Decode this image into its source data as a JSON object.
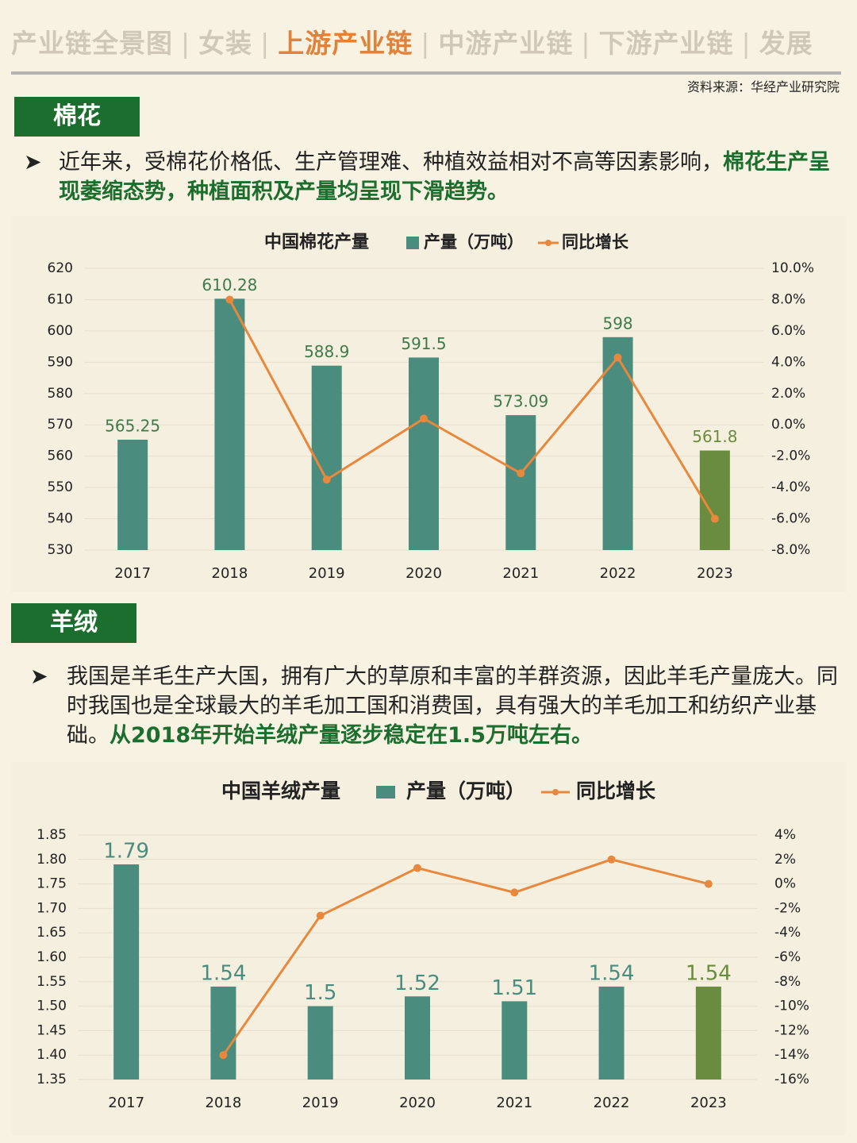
{
  "nav": {
    "items": [
      "产业链全景图",
      "女装",
      "上游产业链",
      "中游产业链",
      "下游产业链",
      "发展"
    ],
    "active_index": 2,
    "separator": "|"
  },
  "source": "资料来源：华经产业研究院",
  "colors": {
    "bar": "#4a8d7e",
    "bar_highlight": "#6a8c3e",
    "line": "#e8883c",
    "accent_green": "#1c6e2e",
    "nav_active": "#e0823a"
  },
  "sections": [
    {
      "tag": "棉花",
      "bullet_plain": "近年来，受棉花价格低、生产管理难、种植效益相对不高等因素影响，",
      "bullet_highlight": "棉花生产呈现萎缩态势，种植面积及产量均呈现下滑趋势。"
    },
    {
      "tag": "羊绒",
      "bullet_plain": "我国是羊毛生产大国，拥有广大的草原和丰富的羊群资源，因此羊毛产量庞大。同时我国也是全球最大的羊毛加工国和消费国，具有强大的羊毛加工和纺织产业基础。",
      "bullet_highlight": "从2018年开始羊绒产量逐步稳定在1.5万吨左右。"
    }
  ],
  "chart_data": [
    {
      "type": "bar",
      "title": "中国棉花产量",
      "categories": [
        "2017",
        "2018",
        "2019",
        "2020",
        "2021",
        "2022",
        "2023"
      ],
      "series": [
        {
          "name": "产量（万吨）",
          "kind": "bar",
          "axis": "left",
          "values": [
            565.25,
            610.28,
            588.9,
            591.5,
            573.09,
            598,
            561.8
          ],
          "labels": [
            "565.25",
            "610.28",
            "588.9",
            "591.5",
            "573.09",
            "598",
            "561.8"
          ]
        },
        {
          "name": "同比增长",
          "kind": "line",
          "axis": "right",
          "values": [
            null,
            8.0,
            -3.5,
            0.4,
            -3.1,
            4.3,
            -6.0
          ]
        }
      ],
      "highlight_index": 6,
      "ylim": [
        530,
        620
      ],
      "yticks": [
        "620",
        "610",
        "600",
        "590",
        "580",
        "570",
        "560",
        "550",
        "540",
        "530"
      ],
      "y2lim": [
        -8,
        10
      ],
      "y2ticks": [
        "10.0%",
        "8.0%",
        "6.0%",
        "4.0%",
        "2.0%",
        "0.0%",
        "-2.0%",
        "-4.0%",
        "-6.0%",
        "-8.0%"
      ],
      "legend_position": "top"
    },
    {
      "type": "bar",
      "title": "中国羊绒产量",
      "categories": [
        "2017",
        "2018",
        "2019",
        "2020",
        "2021",
        "2022",
        "2023"
      ],
      "series": [
        {
          "name": "产量（万吨）",
          "kind": "bar",
          "axis": "left",
          "values": [
            1.79,
            1.54,
            1.5,
            1.52,
            1.51,
            1.54,
            1.54
          ],
          "labels": [
            "1.79",
            "1.54",
            "1.5",
            "1.52",
            "1.51",
            "1.54",
            "1.54"
          ]
        },
        {
          "name": "同比增长",
          "kind": "line",
          "axis": "right",
          "values": [
            null,
            -14.0,
            -2.6,
            1.3,
            -0.7,
            2.0,
            0.0
          ]
        }
      ],
      "highlight_index": 6,
      "ylim": [
        1.35,
        1.85
      ],
      "yticks": [
        "1.85",
        "1.80",
        "1.75",
        "1.70",
        "1.65",
        "1.60",
        "1.55",
        "1.50",
        "1.45",
        "1.40",
        "1.35"
      ],
      "y2lim": [
        -16,
        4
      ],
      "y2ticks": [
        "4%",
        "2%",
        "0%",
        "-2%",
        "-4%",
        "-6%",
        "-8%",
        "-10%",
        "-12%",
        "-14%",
        "-16%"
      ],
      "legend_position": "top"
    }
  ]
}
